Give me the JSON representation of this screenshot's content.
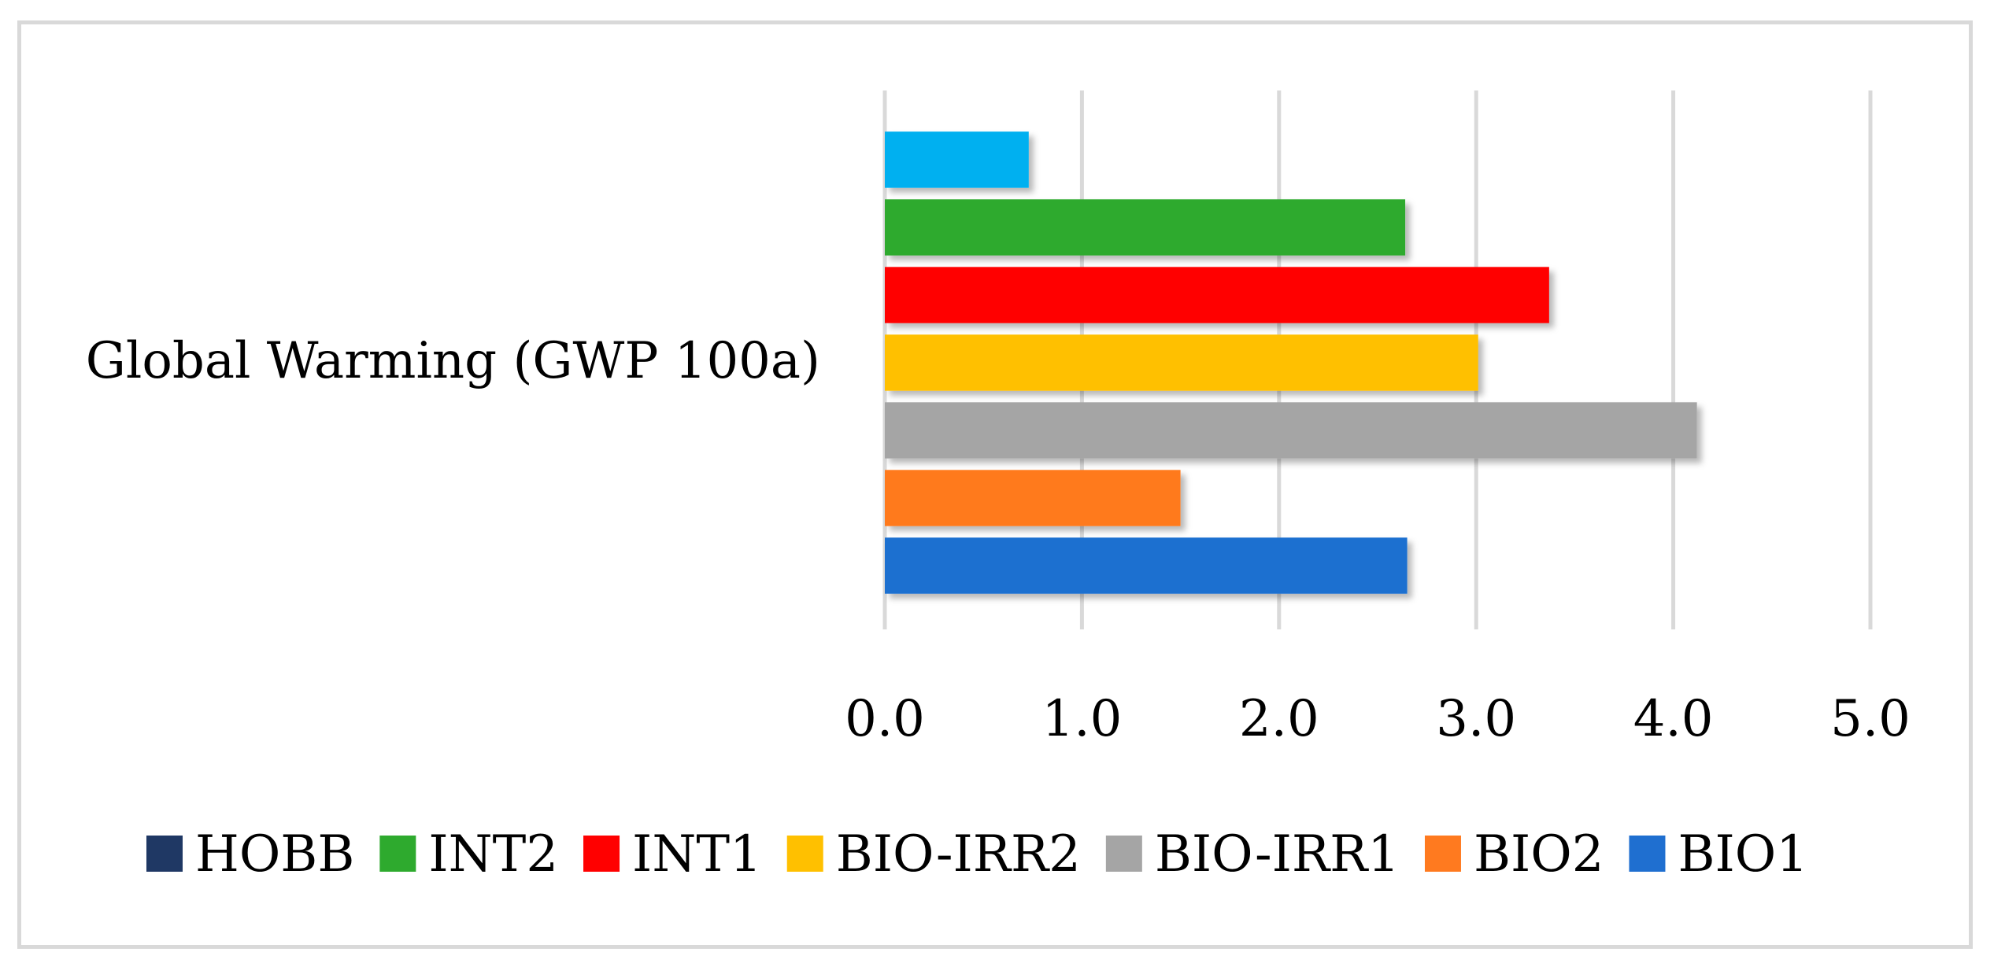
{
  "chart_data": {
    "type": "bar",
    "orientation": "horizontal",
    "title": "",
    "categories": [
      "Global Warming (GWP 100a)"
    ],
    "series": [
      {
        "name": "HOBB",
        "values": [
          0.73
        ],
        "color": "#00B0F0",
        "legend_color": "#1F3864"
      },
      {
        "name": "INT2",
        "values": [
          2.64
        ],
        "color": "#2EAA2E",
        "legend_color": "#2EAA2E"
      },
      {
        "name": "INT1",
        "values": [
          3.37
        ],
        "color": "#FF0000",
        "legend_color": "#FF0000"
      },
      {
        "name": "BIO-IRR2",
        "values": [
          3.01
        ],
        "color": "#FFC000",
        "legend_color": "#FFC000"
      },
      {
        "name": "BIO-IRR1",
        "values": [
          4.12
        ],
        "color": "#A5A5A5",
        "legend_color": "#A5A5A5"
      },
      {
        "name": "BIO2",
        "values": [
          1.5
        ],
        "color": "#FF7A1F",
        "legend_color": "#FF7A1F"
      },
      {
        "name": "BIO1",
        "values": [
          2.65
        ],
        "color": "#1F6FD0",
        "legend_color": "#1F6FD0"
      }
    ],
    "xlabel": "",
    "ylabel": "",
    "xlim": [
      0,
      5
    ],
    "x_ticks": [
      0,
      1,
      2,
      3,
      4,
      5
    ],
    "x_tick_labels": [
      "0.0",
      "1.0",
      "2.0",
      "3.0",
      "4.0",
      "5.0"
    ],
    "grid": true,
    "legend_position": "bottom"
  }
}
